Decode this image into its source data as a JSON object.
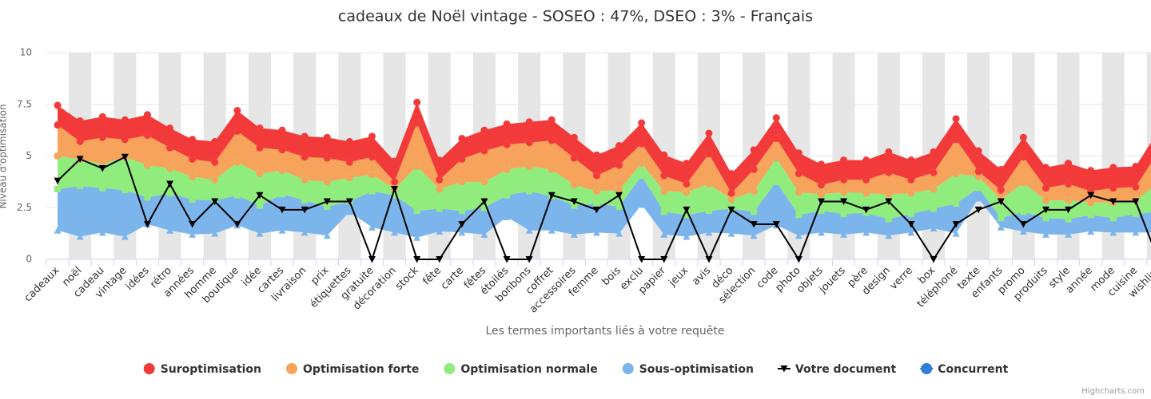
{
  "chart_data": {
    "type": "arearange",
    "title": "cadeaux de Noël vintage - SOSEO : 47%, DSEO : 3% - Français",
    "x_label": "Les termes importants liés à votre requête",
    "y_label": "Niveau d'optimisation",
    "credits": "Highcharts.com",
    "categories": [
      "cadeaux",
      "noël",
      "cadeau",
      "vintage",
      "idées",
      "rétro",
      "années",
      "homme",
      "boutique",
      "idée",
      "cartes",
      "livraison",
      "prix",
      "étiquettes",
      "gratuite",
      "décoration",
      "stock",
      "fête",
      "carte",
      "fêtes",
      "étoilés",
      "bonbons",
      "coffret",
      "accessoires",
      "femme",
      "bois",
      "exclu",
      "papier",
      "jeux",
      "avis",
      "déco",
      "sélection",
      "code",
      "photo",
      "objets",
      "jouets",
      "père",
      "design",
      "verre",
      "box",
      "téléphoné",
      "texte",
      "enfants",
      "promo",
      "produits",
      "style",
      "année",
      "mode",
      "cuisine",
      "wishlist"
    ],
    "ylim": [
      0,
      10
    ],
    "yticks": [
      0,
      2.5,
      5,
      7.5,
      10
    ],
    "alternate_bands": "#e6e6e6",
    "series": [
      {
        "name": "Sous-optimisation",
        "color": "#7cb5ec",
        "marker": "triangle",
        "low": [
          1.4,
          1.1,
          1.3,
          1.1,
          1.7,
          1.4,
          1.2,
          1.25,
          1.65,
          1.25,
          1.4,
          1.3,
          1.15,
          2.3,
          1.55,
          1.3,
          1.05,
          1.35,
          1.3,
          1.2,
          2.05,
          1.4,
          1.4,
          1.2,
          1.3,
          1.25,
          2.65,
          1.2,
          1.1,
          1.3,
          1.25,
          1.15,
          1.65,
          1.15,
          1.3,
          1.2,
          1.3,
          1.15,
          1.3,
          1.5,
          1.25,
          2.95,
          1.55,
          1.35,
          1.2,
          1.2,
          1.35,
          1.3,
          1.3,
          1.3
        ],
        "high": [
          3.4,
          3.55,
          3.45,
          3.35,
          3.0,
          3.2,
          2.9,
          2.85,
          3.1,
          2.6,
          3.15,
          2.85,
          2.55,
          2.8,
          3.3,
          3.1,
          2.35,
          2.45,
          2.35,
          2.5,
          3.1,
          3.3,
          3.05,
          2.6,
          2.7,
          2.55,
          4.05,
          2.3,
          2.15,
          2.35,
          2.45,
          2.3,
          3.75,
          2.15,
          2.35,
          2.2,
          2.25,
          1.95,
          2.2,
          2.45,
          2.7,
          3.45,
          2.0,
          2.3,
          2.0,
          1.95,
          2.15,
          2.0,
          2.2,
          2.3
        ]
      },
      {
        "name": "Optimisation normale",
        "color": "#90ed7d",
        "marker": "square",
        "low": [
          3.4,
          3.55,
          3.45,
          3.35,
          3.0,
          3.2,
          2.9,
          2.85,
          3.1,
          2.6,
          3.15,
          2.85,
          2.55,
          2.8,
          3.3,
          3.1,
          2.35,
          2.45,
          2.35,
          2.5,
          3.1,
          3.3,
          3.05,
          2.6,
          2.7,
          2.55,
          4.05,
          2.3,
          2.15,
          2.35,
          2.45,
          2.3,
          3.75,
          2.15,
          2.35,
          2.2,
          2.25,
          1.95,
          2.2,
          2.45,
          2.7,
          3.45,
          2.0,
          2.3,
          2.0,
          1.95,
          2.15,
          2.0,
          2.2,
          2.3
        ],
        "high": [
          5.0,
          4.85,
          4.6,
          4.95,
          4.55,
          4.4,
          4.0,
          3.85,
          4.7,
          4.15,
          4.3,
          3.85,
          3.75,
          3.95,
          4.1,
          3.4,
          4.5,
          3.4,
          3.75,
          3.75,
          4.35,
          4.5,
          4.35,
          3.6,
          3.3,
          3.35,
          4.65,
          3.3,
          3.25,
          3.65,
          2.9,
          3.3,
          4.9,
          3.25,
          3.15,
          3.25,
          3.2,
          3.15,
          3.2,
          3.4,
          4.15,
          4.0,
          2.9,
          3.7,
          2.85,
          2.85,
          2.75,
          2.75,
          2.85,
          3.7
        ]
      },
      {
        "name": "Optimisation forte",
        "color": "#f7a35c",
        "marker": "circle",
        "low": [
          5.0,
          4.85,
          4.6,
          4.95,
          4.55,
          4.4,
          4.0,
          3.85,
          4.7,
          4.15,
          4.3,
          3.85,
          3.75,
          3.95,
          4.1,
          3.4,
          4.5,
          3.4,
          3.75,
          3.75,
          4.35,
          4.5,
          4.35,
          3.6,
          3.3,
          3.35,
          4.65,
          3.3,
          3.25,
          3.65,
          2.9,
          3.3,
          4.9,
          3.25,
          3.15,
          3.25,
          3.2,
          3.15,
          3.2,
          3.4,
          4.15,
          4.0,
          2.9,
          3.7,
          2.85,
          2.85,
          2.75,
          2.75,
          2.85,
          3.7
        ],
        "high": [
          6.5,
          5.7,
          5.9,
          5.8,
          6.0,
          5.4,
          4.85,
          4.7,
          6.2,
          5.4,
          5.3,
          4.95,
          4.9,
          4.7,
          4.95,
          3.75,
          6.6,
          3.85,
          4.85,
          5.25,
          5.55,
          5.65,
          5.75,
          4.9,
          4.05,
          4.55,
          5.6,
          4.05,
          3.65,
          5.1,
          3.2,
          4.35,
          5.85,
          4.15,
          3.6,
          3.85,
          3.85,
          4.2,
          3.85,
          4.2,
          5.8,
          4.25,
          3.35,
          4.95,
          3.45,
          3.65,
          3.3,
          3.45,
          3.5,
          5.2
        ]
      },
      {
        "name": "Suroptimisation",
        "color": "#f23a3a",
        "marker": "circle",
        "low": [
          6.5,
          5.7,
          5.9,
          5.8,
          6.0,
          5.4,
          4.85,
          4.7,
          6.2,
          5.4,
          5.3,
          4.95,
          4.9,
          4.7,
          4.95,
          3.75,
          6.6,
          3.85,
          4.85,
          5.25,
          5.55,
          5.65,
          5.75,
          4.9,
          4.05,
          4.55,
          5.6,
          4.05,
          3.65,
          5.1,
          3.2,
          4.35,
          5.85,
          4.15,
          3.6,
          3.85,
          3.85,
          4.2,
          3.85,
          4.2,
          5.8,
          4.25,
          3.35,
          4.95,
          3.45,
          3.65,
          3.3,
          3.45,
          3.5,
          5.2
        ],
        "high": [
          7.45,
          6.7,
          6.9,
          6.75,
          7.0,
          6.35,
          5.8,
          5.7,
          7.2,
          6.35,
          6.25,
          5.95,
          5.9,
          5.7,
          5.95,
          4.75,
          7.6,
          4.8,
          5.85,
          6.25,
          6.55,
          6.65,
          6.75,
          5.9,
          5.05,
          5.5,
          6.6,
          5.05,
          4.65,
          6.1,
          4.15,
          5.3,
          6.85,
          5.15,
          4.6,
          4.8,
          4.8,
          5.2,
          4.8,
          5.2,
          6.8,
          5.25,
          4.35,
          5.9,
          4.45,
          4.65,
          4.3,
          4.45,
          4.5,
          6.2
        ]
      },
      {
        "name": "Votre document",
        "color": "#000000",
        "marker": "triangle-down",
        "line": true,
        "values": [
          3.8,
          4.85,
          4.4,
          4.95,
          1.7,
          3.65,
          1.7,
          2.8,
          1.7,
          3.1,
          2.4,
          2.4,
          2.8,
          2.8,
          0,
          3.4,
          0,
          0,
          1.7,
          2.8,
          0,
          0,
          3.1,
          2.8,
          2.4,
          3.1,
          0,
          0,
          2.4,
          0,
          2.4,
          1.7,
          1.7,
          0,
          2.8,
          2.8,
          2.4,
          2.8,
          1.7,
          0,
          1.7,
          2.4,
          2.8,
          1.7,
          2.4,
          2.4,
          3.1,
          2.8,
          2.8,
          0
        ]
      },
      {
        "name": "Concurrent",
        "color": "#2f7ed8",
        "marker": "circle",
        "line": true
      }
    ],
    "legend_order": [
      3,
      2,
      1,
      0,
      4,
      5
    ]
  }
}
